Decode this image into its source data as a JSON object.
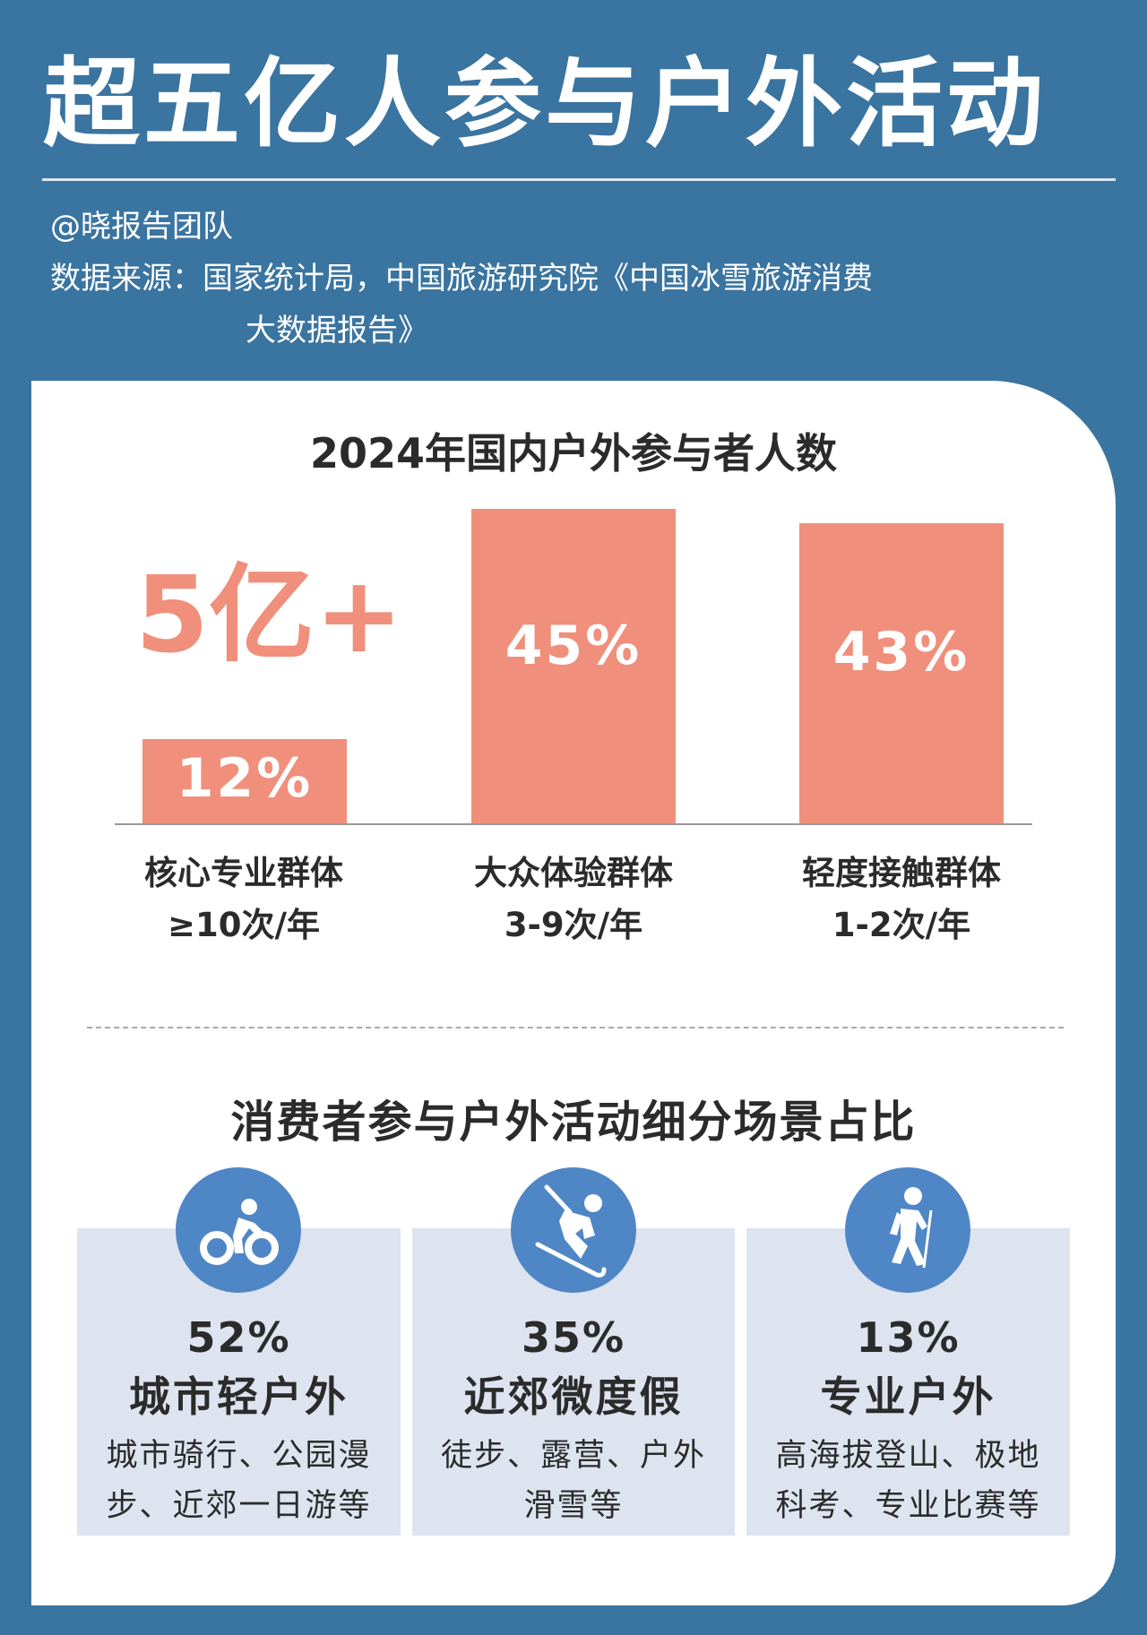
{
  "header": {
    "title": "超五亿人参与户外活动",
    "author": "@晓报告团队",
    "source_line1": "数据来源：国家统计局，中国旅游研究院《中国冰雪旅游消费",
    "source_line2": "大数据报告》"
  },
  "colors": {
    "background": "#3a74a0",
    "bar": "#f08f7b",
    "icon_circle": "#4f86c6",
    "card": "#dde4f0"
  },
  "chart_data": {
    "type": "bar",
    "title": "2024年国内户外参与者人数",
    "annotation": "5亿+",
    "categories": [
      "核心专业群体",
      "大众体验群体",
      "轻度接触群体"
    ],
    "subcategories": [
      "≥10次/年",
      "3-9次/年",
      "1-2次/年"
    ],
    "values": [
      12,
      45,
      43
    ],
    "value_labels": [
      "12%",
      "45%",
      "43%"
    ],
    "unit": "%",
    "grid": false
  },
  "segments": {
    "title": "消费者参与户外活动细分场景占比",
    "items": [
      {
        "icon": "cycling-icon",
        "percent": "52%",
        "name": "城市轻户外",
        "desc_line1": "城市骑行、公园漫",
        "desc_line2": "步、近郊一日游等"
      },
      {
        "icon": "skiing-icon",
        "percent": "35%",
        "name": "近郊微度假",
        "desc_line1": "徒步、露营、户外",
        "desc_line2": "滑雪等"
      },
      {
        "icon": "hiking-icon",
        "percent": "13%",
        "name": "专业户外",
        "desc_line1": "高海拔登山、极地",
        "desc_line2": "科考、专业比赛等"
      }
    ]
  }
}
